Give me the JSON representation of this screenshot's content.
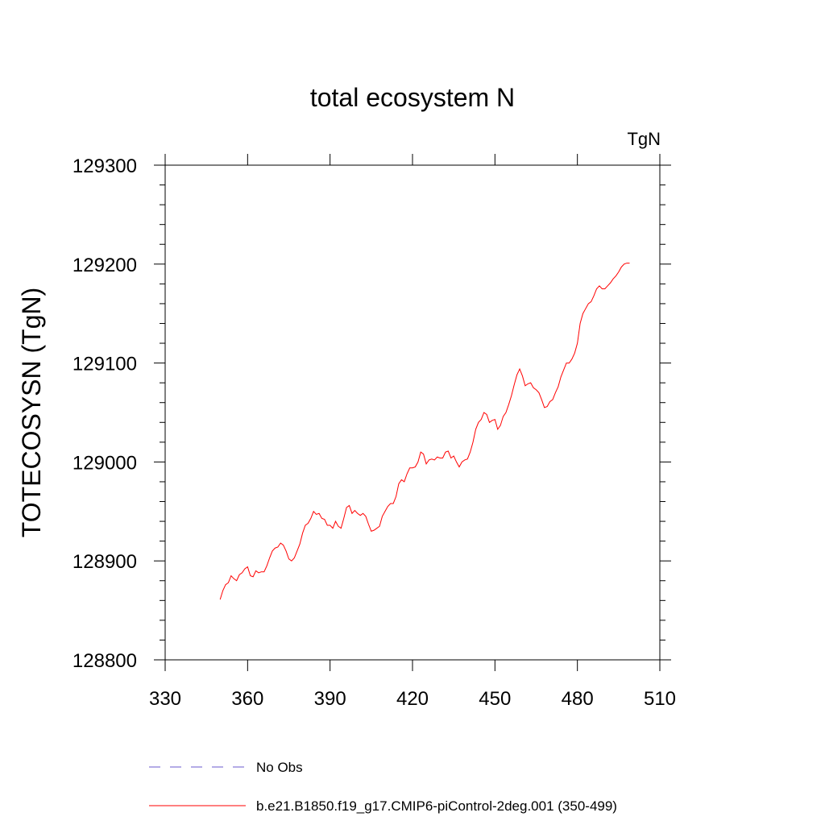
{
  "chart_data": {
    "type": "line",
    "title": "total ecosystem N",
    "units_label": "TgN",
    "ylabel": "TOTECOSYSN  (TgN)",
    "xlabel": "",
    "xlim": [
      330,
      510
    ],
    "ylim": [
      128800,
      129300
    ],
    "xticks": [
      330,
      360,
      390,
      420,
      450,
      480,
      510
    ],
    "yticks": [
      128800,
      128900,
      129000,
      129100,
      129200,
      129300
    ],
    "grid": false,
    "legend": "bottom",
    "series": [
      {
        "name": "b.e21.B1850.f19_g17.CMIP6-piControl-2deg.001 (350-499)",
        "color": "#ff0000",
        "style": "solid",
        "x": [
          350,
          351,
          352,
          353,
          354,
          355,
          356,
          357,
          358,
          359,
          360,
          361,
          362,
          363,
          364,
          365,
          366,
          367,
          368,
          369,
          370,
          371,
          372,
          373,
          374,
          375,
          376,
          377,
          378,
          379,
          380,
          381,
          382,
          383,
          384,
          385,
          386,
          387,
          388,
          389,
          390,
          391,
          392,
          393,
          394,
          395,
          396,
          397,
          398,
          399,
          400,
          401,
          402,
          403,
          404,
          405,
          406,
          407,
          408,
          409,
          410,
          411,
          412,
          413,
          414,
          415,
          416,
          417,
          418,
          419,
          420,
          421,
          422,
          423,
          424,
          425,
          426,
          427,
          428,
          429,
          430,
          431,
          432,
          433,
          434,
          435,
          436,
          437,
          438,
          439,
          440,
          441,
          442,
          443,
          444,
          445,
          446,
          447,
          448,
          449,
          450,
          451,
          452,
          453,
          454,
          455,
          456,
          457,
          458,
          459,
          460,
          461,
          462,
          463,
          464,
          465,
          466,
          467,
          468,
          469,
          470,
          471,
          472,
          473,
          474,
          475,
          476,
          477,
          478,
          479,
          480,
          481,
          482,
          483,
          484,
          485,
          486,
          487,
          488,
          489,
          490,
          491,
          492,
          493,
          494,
          495,
          496,
          497,
          498,
          499
        ],
        "y": [
          128861,
          128870,
          128876,
          128878,
          128885,
          128882,
          128880,
          128886,
          128888,
          128892,
          128894,
          128885,
          128884,
          128890,
          128888,
          128889,
          128889,
          128895,
          128903,
          128910,
          128913,
          128914,
          128918,
          128916,
          128910,
          128902,
          128900,
          128903,
          128910,
          128917,
          128928,
          128936,
          128938,
          128943,
          128950,
          128947,
          128948,
          128943,
          128942,
          128936,
          128936,
          128933,
          128940,
          128935,
          128933,
          128943,
          128954,
          128956,
          128948,
          128951,
          128948,
          128946,
          128948,
          128945,
          128937,
          128930,
          128931,
          128933,
          128935,
          128945,
          128950,
          128955,
          128958,
          128958,
          128965,
          128978,
          128982,
          128980,
          128988,
          128994,
          128994,
          128995,
          129000,
          129010,
          129008,
          128998,
          129002,
          129003,
          129002,
          129005,
          129004,
          129004,
          129010,
          129011,
          129004,
          129006,
          129000,
          128995,
          129000,
          129002,
          129003,
          129010,
          129020,
          129033,
          129040,
          129043,
          129050,
          129048,
          129040,
          129042,
          129043,
          129033,
          129037,
          129046,
          129050,
          129058,
          129067,
          129078,
          129088,
          129094,
          129087,
          129077,
          129079,
          129080,
          129075,
          129073,
          129070,
          129063,
          129055,
          129056,
          129061,
          129063,
          129070,
          129076,
          129086,
          129093,
          129100,
          129100,
          129104,
          129110,
          129120,
          129140,
          129150,
          129155,
          129160,
          129162,
          129168,
          129175,
          129178,
          129175,
          129175,
          129178,
          129181,
          129185,
          129188,
          129192,
          129197,
          129200,
          129201,
          129201
        ]
      },
      {
        "name": "No Obs",
        "color": "#6a5acd",
        "style": "dashed",
        "x": [],
        "y": []
      }
    ]
  }
}
